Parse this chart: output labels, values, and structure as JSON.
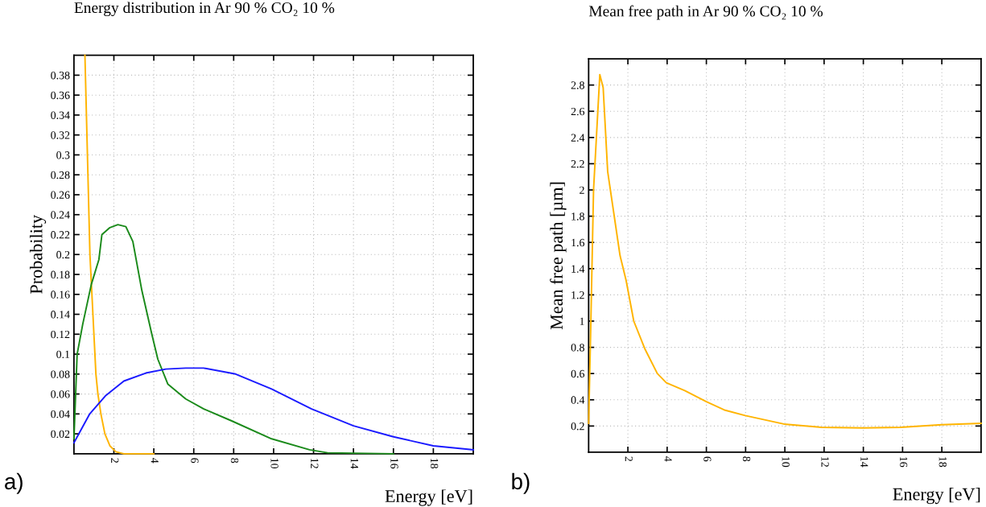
{
  "chart_data": [
    {
      "type": "line",
      "title": "Energy distribution in Ar 90 % CO₂ 10 %",
      "xlabel": "Energy [eV]",
      "ylabel": "Probability",
      "annotations": [
        "a)"
      ],
      "xlim": [
        0,
        20
      ],
      "ylim": [
        0,
        0.4
      ],
      "xticks": [
        2,
        4,
        6,
        8,
        10,
        12,
        14,
        16,
        18
      ],
      "yticks": [
        0.02,
        0.04,
        0.06,
        0.08,
        0.1,
        0.12,
        0.14,
        0.16,
        0.18,
        0.2,
        0.22,
        0.24,
        0.26,
        0.28,
        0.3,
        0.32,
        0.34,
        0.36,
        0.38
      ],
      "grid": true,
      "marker": "none",
      "line_style": "solid",
      "series": [
        {
          "color": "#ffb400",
          "x": [
            0.55,
            0.6,
            0.65,
            0.7,
            0.75,
            0.8,
            0.9,
            1.0,
            1.1,
            1.2,
            1.35,
            1.55,
            1.8,
            2.1,
            2.5,
            4.0
          ],
          "values": [
            0.4,
            0.36,
            0.32,
            0.28,
            0.24,
            0.2,
            0.16,
            0.12,
            0.08,
            0.06,
            0.04,
            0.02,
            0.008,
            0.002,
            0,
            0
          ]
        },
        {
          "color": "#1a8a1a",
          "x": [
            0,
            0.16,
            0.44,
            0.87,
            1.25,
            1.4,
            1.8,
            2.2,
            2.6,
            2.95,
            3.4,
            3.9,
            4.2,
            4.7,
            5.6,
            6.5,
            7.9,
            9.9,
            11.8,
            12.7,
            16
          ],
          "values": [
            0.015,
            0.1,
            0.13,
            0.17,
            0.195,
            0.22,
            0.227,
            0.23,
            0.228,
            0.213,
            0.164,
            0.12,
            0.095,
            0.07,
            0.055,
            0.045,
            0.033,
            0.015,
            0.004,
            0.001,
            0
          ]
        },
        {
          "color": "#1a1aff",
          "x": [
            0,
            0.79,
            1.57,
            2.5,
            3.6,
            4.6,
            5.6,
            6.5,
            8.1,
            9.9,
            11.9,
            14,
            16,
            18,
            20
          ],
          "values": [
            0.011,
            0.04,
            0.058,
            0.073,
            0.081,
            0.085,
            0.086,
            0.086,
            0.08,
            0.065,
            0.045,
            0.028,
            0.017,
            0.008,
            0.004
          ]
        }
      ]
    },
    {
      "type": "line",
      "title": "Mean free path in Ar 90 % CO₂ 10 %",
      "xlabel": "Energy [eV]",
      "ylabel": "Mean free path [µm]",
      "annotations": [
        "b)"
      ],
      "xlim": [
        0,
        20
      ],
      "ylim": [
        0,
        3
      ],
      "xticks": [
        2,
        4,
        6,
        8,
        10,
        12,
        14,
        16,
        18
      ],
      "yticks": [
        0.2,
        0.4,
        0.6,
        0.8,
        1,
        1.2,
        1.4,
        1.6,
        1.8,
        2,
        2.2,
        2.4,
        2.6,
        2.8
      ],
      "grid": true,
      "marker": "none",
      "line_style": "solid",
      "series": [
        {
          "color": "#ffb400",
          "x": [
            0,
            0.1,
            0.25,
            0.57,
            0.74,
            0.97,
            1.6,
            1.91,
            2.3,
            2.86,
            3.5,
            3.96,
            4.9,
            6.0,
            6.96,
            7.98,
            9.95,
            11.85,
            13.98,
            15.9,
            18,
            20
          ],
          "values": [
            0.22,
            0.9,
            2.0,
            2.88,
            2.78,
            2.14,
            1.5,
            1.31,
            1.0,
            0.79,
            0.6,
            0.53,
            0.47,
            0.385,
            0.32,
            0.28,
            0.215,
            0.19,
            0.185,
            0.19,
            0.21,
            0.22
          ]
        }
      ]
    }
  ]
}
